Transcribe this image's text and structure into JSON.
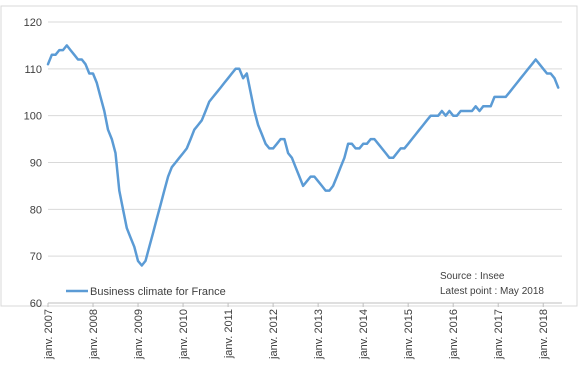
{
  "chart_data": {
    "type": "line",
    "title": "",
    "xlabel": "",
    "ylabel": "",
    "ylim": [
      60,
      120
    ],
    "y_ticks": [
      60,
      70,
      80,
      90,
      100,
      110,
      120
    ],
    "x_ticks": [
      "janv. 2007",
      "janv. 2008",
      "janv. 2009",
      "janv. 2010",
      "janv. 2011",
      "janv. 2012",
      "janv. 2013",
      "janv. 2014",
      "janv. 2015",
      "janv. 2016",
      "janv. 2017",
      "janv. 2018"
    ],
    "grid": "horizontal",
    "legend_position": "bottom-left",
    "colors": {
      "series": "#5b9bd5",
      "grid": "#d9d9d9",
      "axis": "#bfbfbf",
      "text": "#404040"
    },
    "series": [
      {
        "name": "Business climate for France",
        "points": [
          [
            "2007-01",
            111
          ],
          [
            "2007-02",
            113
          ],
          [
            "2007-03",
            113
          ],
          [
            "2007-04",
            114
          ],
          [
            "2007-05",
            114
          ],
          [
            "2007-06",
            115
          ],
          [
            "2007-07",
            114
          ],
          [
            "2007-08",
            113
          ],
          [
            "2007-09",
            112
          ],
          [
            "2007-10",
            112
          ],
          [
            "2007-11",
            111
          ],
          [
            "2007-12",
            109
          ],
          [
            "2008-01",
            109
          ],
          [
            "2008-02",
            107
          ],
          [
            "2008-03",
            104
          ],
          [
            "2008-04",
            101
          ],
          [
            "2008-05",
            97
          ],
          [
            "2008-06",
            95
          ],
          [
            "2008-07",
            92
          ],
          [
            "2008-08",
            84
          ],
          [
            "2008-09",
            80
          ],
          [
            "2008-10",
            76
          ],
          [
            "2008-11",
            74
          ],
          [
            "2008-12",
            72
          ],
          [
            "2009-01",
            69
          ],
          [
            "2009-02",
            68
          ],
          [
            "2009-03",
            69
          ],
          [
            "2009-04",
            72
          ],
          [
            "2009-05",
            75
          ],
          [
            "2009-06",
            78
          ],
          [
            "2009-07",
            81
          ],
          [
            "2009-08",
            84
          ],
          [
            "2009-09",
            87
          ],
          [
            "2009-10",
            89
          ],
          [
            "2009-11",
            90
          ],
          [
            "2009-12",
            91
          ],
          [
            "2010-01",
            92
          ],
          [
            "2010-02",
            93
          ],
          [
            "2010-03",
            95
          ],
          [
            "2010-04",
            97
          ],
          [
            "2010-05",
            98
          ],
          [
            "2010-06",
            99
          ],
          [
            "2010-07",
            101
          ],
          [
            "2010-08",
            103
          ],
          [
            "2010-09",
            104
          ],
          [
            "2010-10",
            105
          ],
          [
            "2010-11",
            106
          ],
          [
            "2010-12",
            107
          ],
          [
            "2011-01",
            108
          ],
          [
            "2011-02",
            109
          ],
          [
            "2011-03",
            110
          ],
          [
            "2011-04",
            110
          ],
          [
            "2011-05",
            108
          ],
          [
            "2011-06",
            109
          ],
          [
            "2011-07",
            105
          ],
          [
            "2011-08",
            101
          ],
          [
            "2011-09",
            98
          ],
          [
            "2011-10",
            96
          ],
          [
            "2011-11",
            94
          ],
          [
            "2011-12",
            93
          ],
          [
            "2012-01",
            93
          ],
          [
            "2012-02",
            94
          ],
          [
            "2012-03",
            95
          ],
          [
            "2012-04",
            95
          ],
          [
            "2012-05",
            92
          ],
          [
            "2012-06",
            91
          ],
          [
            "2012-07",
            89
          ],
          [
            "2012-08",
            87
          ],
          [
            "2012-09",
            85
          ],
          [
            "2012-10",
            86
          ],
          [
            "2012-11",
            87
          ],
          [
            "2012-12",
            87
          ],
          [
            "2013-01",
            86
          ],
          [
            "2013-02",
            85
          ],
          [
            "2013-03",
            84
          ],
          [
            "2013-04",
            84
          ],
          [
            "2013-05",
            85
          ],
          [
            "2013-06",
            87
          ],
          [
            "2013-07",
            89
          ],
          [
            "2013-08",
            91
          ],
          [
            "2013-09",
            94
          ],
          [
            "2013-10",
            94
          ],
          [
            "2013-11",
            93
          ],
          [
            "2013-12",
            93
          ],
          [
            "2014-01",
            94
          ],
          [
            "2014-02",
            94
          ],
          [
            "2014-03",
            95
          ],
          [
            "2014-04",
            95
          ],
          [
            "2014-05",
            94
          ],
          [
            "2014-06",
            93
          ],
          [
            "2014-07",
            92
          ],
          [
            "2014-08",
            91
          ],
          [
            "2014-09",
            91
          ],
          [
            "2014-10",
            92
          ],
          [
            "2014-11",
            93
          ],
          [
            "2014-12",
            93
          ],
          [
            "2015-01",
            94
          ],
          [
            "2015-02",
            95
          ],
          [
            "2015-03",
            96
          ],
          [
            "2015-04",
            97
          ],
          [
            "2015-05",
            98
          ],
          [
            "2015-06",
            99
          ],
          [
            "2015-07",
            100
          ],
          [
            "2015-08",
            100
          ],
          [
            "2015-09",
            100
          ],
          [
            "2015-10",
            101
          ],
          [
            "2015-11",
            100
          ],
          [
            "2015-12",
            101
          ],
          [
            "2016-01",
            100
          ],
          [
            "2016-02",
            100
          ],
          [
            "2016-03",
            101
          ],
          [
            "2016-04",
            101
          ],
          [
            "2016-05",
            101
          ],
          [
            "2016-06",
            101
          ],
          [
            "2016-07",
            102
          ],
          [
            "2016-08",
            101
          ],
          [
            "2016-09",
            102
          ],
          [
            "2016-10",
            102
          ],
          [
            "2016-11",
            102
          ],
          [
            "2016-12",
            104
          ],
          [
            "2017-01",
            104
          ],
          [
            "2017-02",
            104
          ],
          [
            "2017-03",
            104
          ],
          [
            "2017-04",
            105
          ],
          [
            "2017-05",
            106
          ],
          [
            "2017-06",
            107
          ],
          [
            "2017-07",
            108
          ],
          [
            "2017-08",
            109
          ],
          [
            "2017-09",
            110
          ],
          [
            "2017-10",
            111
          ],
          [
            "2017-11",
            112
          ],
          [
            "2017-12",
            111
          ],
          [
            "2018-01",
            110
          ],
          [
            "2018-02",
            109
          ],
          [
            "2018-03",
            109
          ],
          [
            "2018-04",
            108
          ],
          [
            "2018-05",
            106
          ]
        ]
      }
    ],
    "annotations": [
      "Source : Insee",
      "Latest point : May 2018"
    ]
  }
}
